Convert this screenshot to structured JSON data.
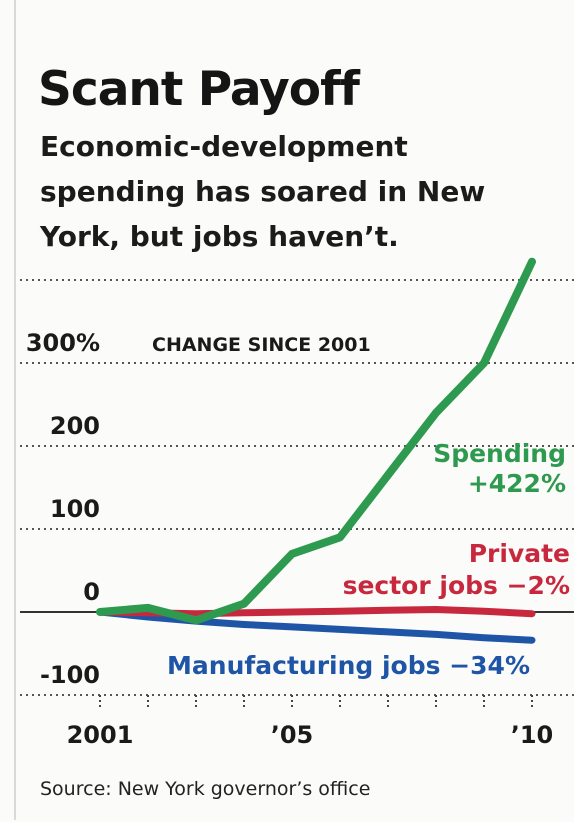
{
  "header": {
    "title": "Scant Payoff",
    "subtitle": "Economic-development spending has soared in New York, but jobs haven’t."
  },
  "footer": {
    "source": "Source: New York governor’s office"
  },
  "chart_data": {
    "type": "line",
    "ylabel": "CHANGE SINCE 2001",
    "ylim": [
      -100,
      400
    ],
    "yticks": [
      {
        "value": 300,
        "label": "300%"
      },
      {
        "value": 200,
        "label": "200"
      },
      {
        "value": 100,
        "label": "100"
      },
      {
        "value": 0,
        "label": "0"
      },
      {
        "value": -100,
        "label": "-100"
      }
    ],
    "xlim": [
      2001,
      2010
    ],
    "xticks": [
      {
        "value": 2001,
        "label": "2001"
      },
      {
        "value": 2005,
        "label": "’05"
      },
      {
        "value": 2010,
        "label": "’10"
      }
    ],
    "grid": true,
    "series": [
      {
        "name": "Spending",
        "label_lines": [
          "Spending",
          "+422%"
        ],
        "color": "#2e9a4f",
        "x": [
          2001,
          2002,
          2003,
          2004,
          2005,
          2006,
          2007,
          2008,
          2009,
          2010
        ],
        "y": [
          0,
          5,
          -10,
          10,
          70,
          90,
          165,
          240,
          300,
          422
        ]
      },
      {
        "name": "Private sector jobs",
        "label_lines": [
          "Private",
          "sector jobs −2%"
        ],
        "color": "#c8283e",
        "x": [
          2001,
          2002,
          2003,
          2004,
          2005,
          2006,
          2007,
          2008,
          2009,
          2010
        ],
        "y": [
          0,
          -1,
          -2,
          -1,
          0,
          1,
          2,
          3,
          1,
          -2
        ]
      },
      {
        "name": "Manufacturing jobs",
        "label_lines": [
          "Manufacturing jobs −34%"
        ],
        "color": "#1f55a6",
        "x": [
          2001,
          2002,
          2003,
          2004,
          2005,
          2006,
          2007,
          2008,
          2009,
          2010
        ],
        "y": [
          0,
          -6,
          -11,
          -15,
          -18,
          -21,
          -24,
          -27,
          -31,
          -34
        ]
      }
    ]
  }
}
